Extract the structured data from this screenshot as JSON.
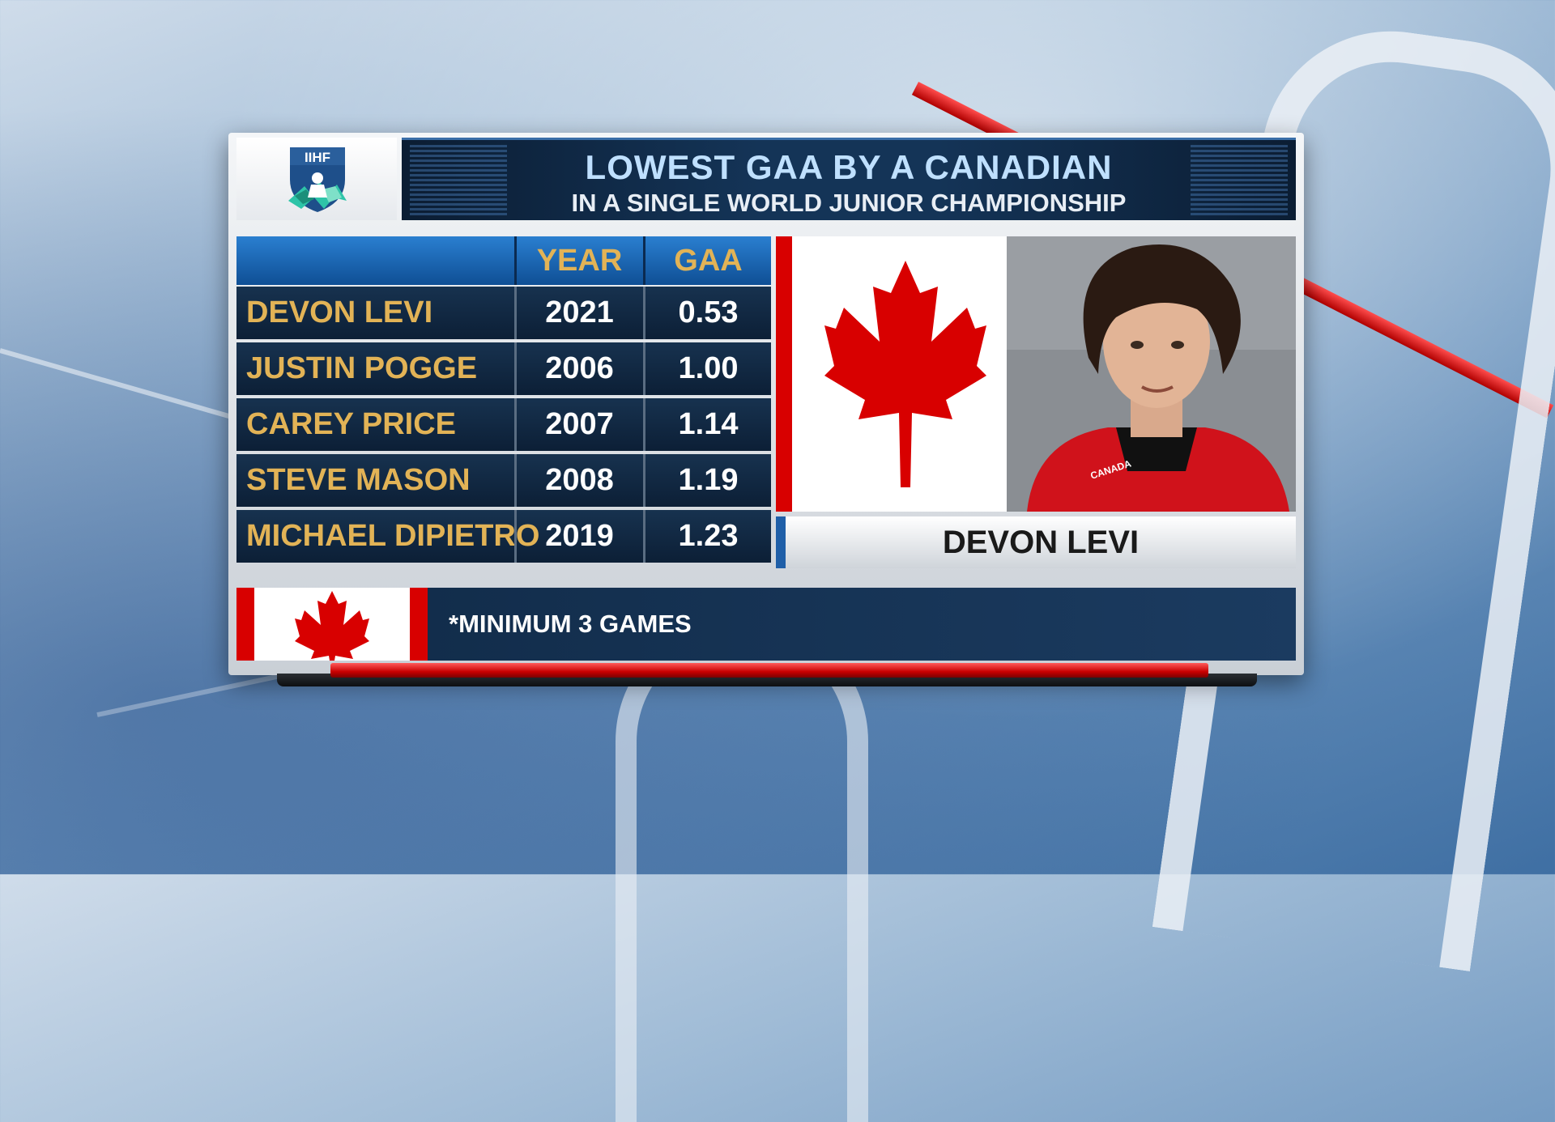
{
  "header": {
    "logo_text": "IIHF",
    "title": "LOWEST GAA BY A CANADIAN",
    "subtitle": "IN A SINGLE WORLD JUNIOR CHAMPIONSHIP"
  },
  "table": {
    "columns": [
      "",
      "YEAR",
      "GAA"
    ],
    "rows": [
      {
        "name": "DEVON LEVI",
        "year": "2021",
        "gaa": "0.53"
      },
      {
        "name": "JUSTIN POGGE",
        "year": "2006",
        "gaa": "1.00"
      },
      {
        "name": "CAREY PRICE",
        "year": "2007",
        "gaa": "1.14"
      },
      {
        "name": "STEVE MASON",
        "year": "2008",
        "gaa": "1.19"
      },
      {
        "name": "MICHAEL DIPIETRO",
        "year": "2019",
        "gaa": "1.23"
      }
    ]
  },
  "featured": {
    "name": "DEVON LEVI",
    "jersey_text": "CANADA"
  },
  "footer": {
    "note": "*MINIMUM 3 GAMES"
  },
  "colors": {
    "gold": "#e2b356",
    "title_blue": "#bfe0ff",
    "canada_red": "#d80000",
    "navy": "#0c1f36"
  }
}
